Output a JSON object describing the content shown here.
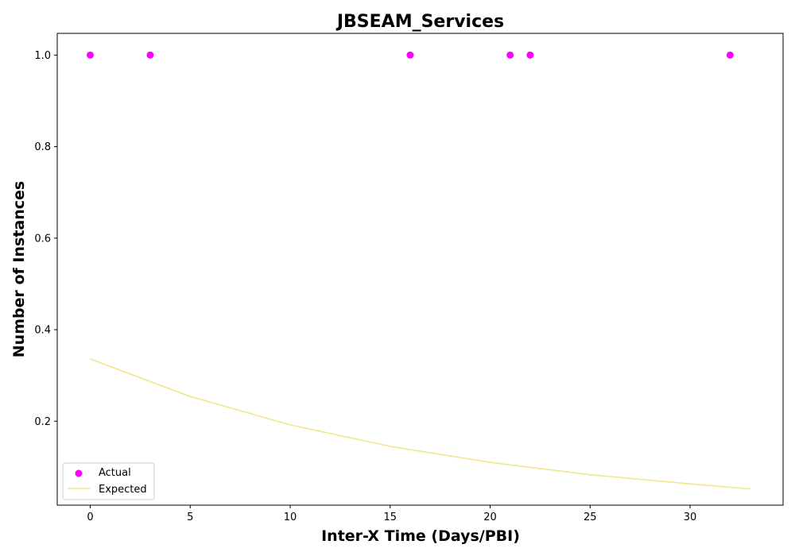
{
  "chart_data": {
    "type": "scatter",
    "title": "JBSEAM_Services",
    "xlabel": "Inter-X Time (Days/PBI)",
    "ylabel": "Number of Instances",
    "xlim": [
      -1.65,
      34.65
    ],
    "ylim": [
      0.0165,
      1.0475
    ],
    "xticks": [
      0,
      5,
      10,
      15,
      20,
      25,
      30
    ],
    "yticks": [
      0.2,
      0.4,
      0.6,
      0.8,
      1.0
    ],
    "ytick_labels": [
      "0.2",
      "0.4",
      "0.6",
      "0.8",
      "1.0"
    ],
    "legend_position": "lower-left",
    "series": [
      {
        "name": "Actual",
        "kind": "scatter",
        "color": "#ff00ff",
        "x": [
          0,
          3,
          16,
          21,
          22,
          32
        ],
        "y": [
          1.0,
          1.0,
          1.0,
          1.0,
          1.0,
          1.0
        ]
      },
      {
        "name": "Expected",
        "kind": "line",
        "color": "#f0e68c",
        "x": [
          0,
          5,
          10,
          15,
          20,
          25,
          30,
          33
        ],
        "y": [
          0.336,
          0.254,
          0.192,
          0.145,
          0.11,
          0.083,
          0.063,
          0.052
        ]
      }
    ]
  }
}
